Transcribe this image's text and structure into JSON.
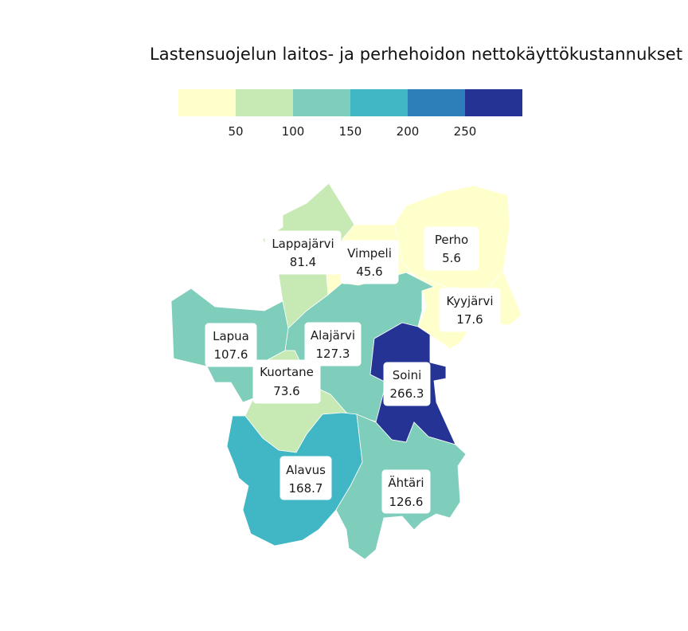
{
  "title": "Lastensuojelun laitos- ja perhehoidon nettokäyttökustannukset",
  "legend": {
    "bins": [
      {
        "from": 0,
        "to": 50,
        "color": "#ffffcc"
      },
      {
        "from": 50,
        "to": 100,
        "color": "#c7e9b4"
      },
      {
        "from": 100,
        "to": 150,
        "color": "#7fcdbb"
      },
      {
        "from": 150,
        "to": 200,
        "color": "#41b6c4"
      },
      {
        "from": 200,
        "to": 250,
        "color": "#2c7fb8"
      },
      {
        "from": 250,
        "to": 300,
        "color": "#253494"
      }
    ],
    "ticks": [
      "50",
      "100",
      "150",
      "200",
      "250"
    ]
  },
  "regions": [
    {
      "name": "Perho",
      "value": "5.6",
      "color": "#ffffcc"
    },
    {
      "name": "Kyyjärvi",
      "value": "17.6",
      "color": "#ffffcc"
    },
    {
      "name": "Vimpeli",
      "value": "45.6",
      "color": "#ffffcc"
    },
    {
      "name": "Lappajärvi",
      "value": "81.4",
      "color": "#c7e9b4"
    },
    {
      "name": "Kuortane",
      "value": "73.6",
      "color": "#c7e9b4"
    },
    {
      "name": "Lapua",
      "value": "107.6",
      "color": "#7fcdbb"
    },
    {
      "name": "Alajärvi",
      "value": "127.3",
      "color": "#7fcdbb"
    },
    {
      "name": "Ähtäri",
      "value": "126.6",
      "color": "#7fcdbb"
    },
    {
      "name": "Alavus",
      "value": "168.7",
      "color": "#41b6c4"
    },
    {
      "name": "Soini",
      "value": "266.3",
      "color": "#253494"
    }
  ]
}
